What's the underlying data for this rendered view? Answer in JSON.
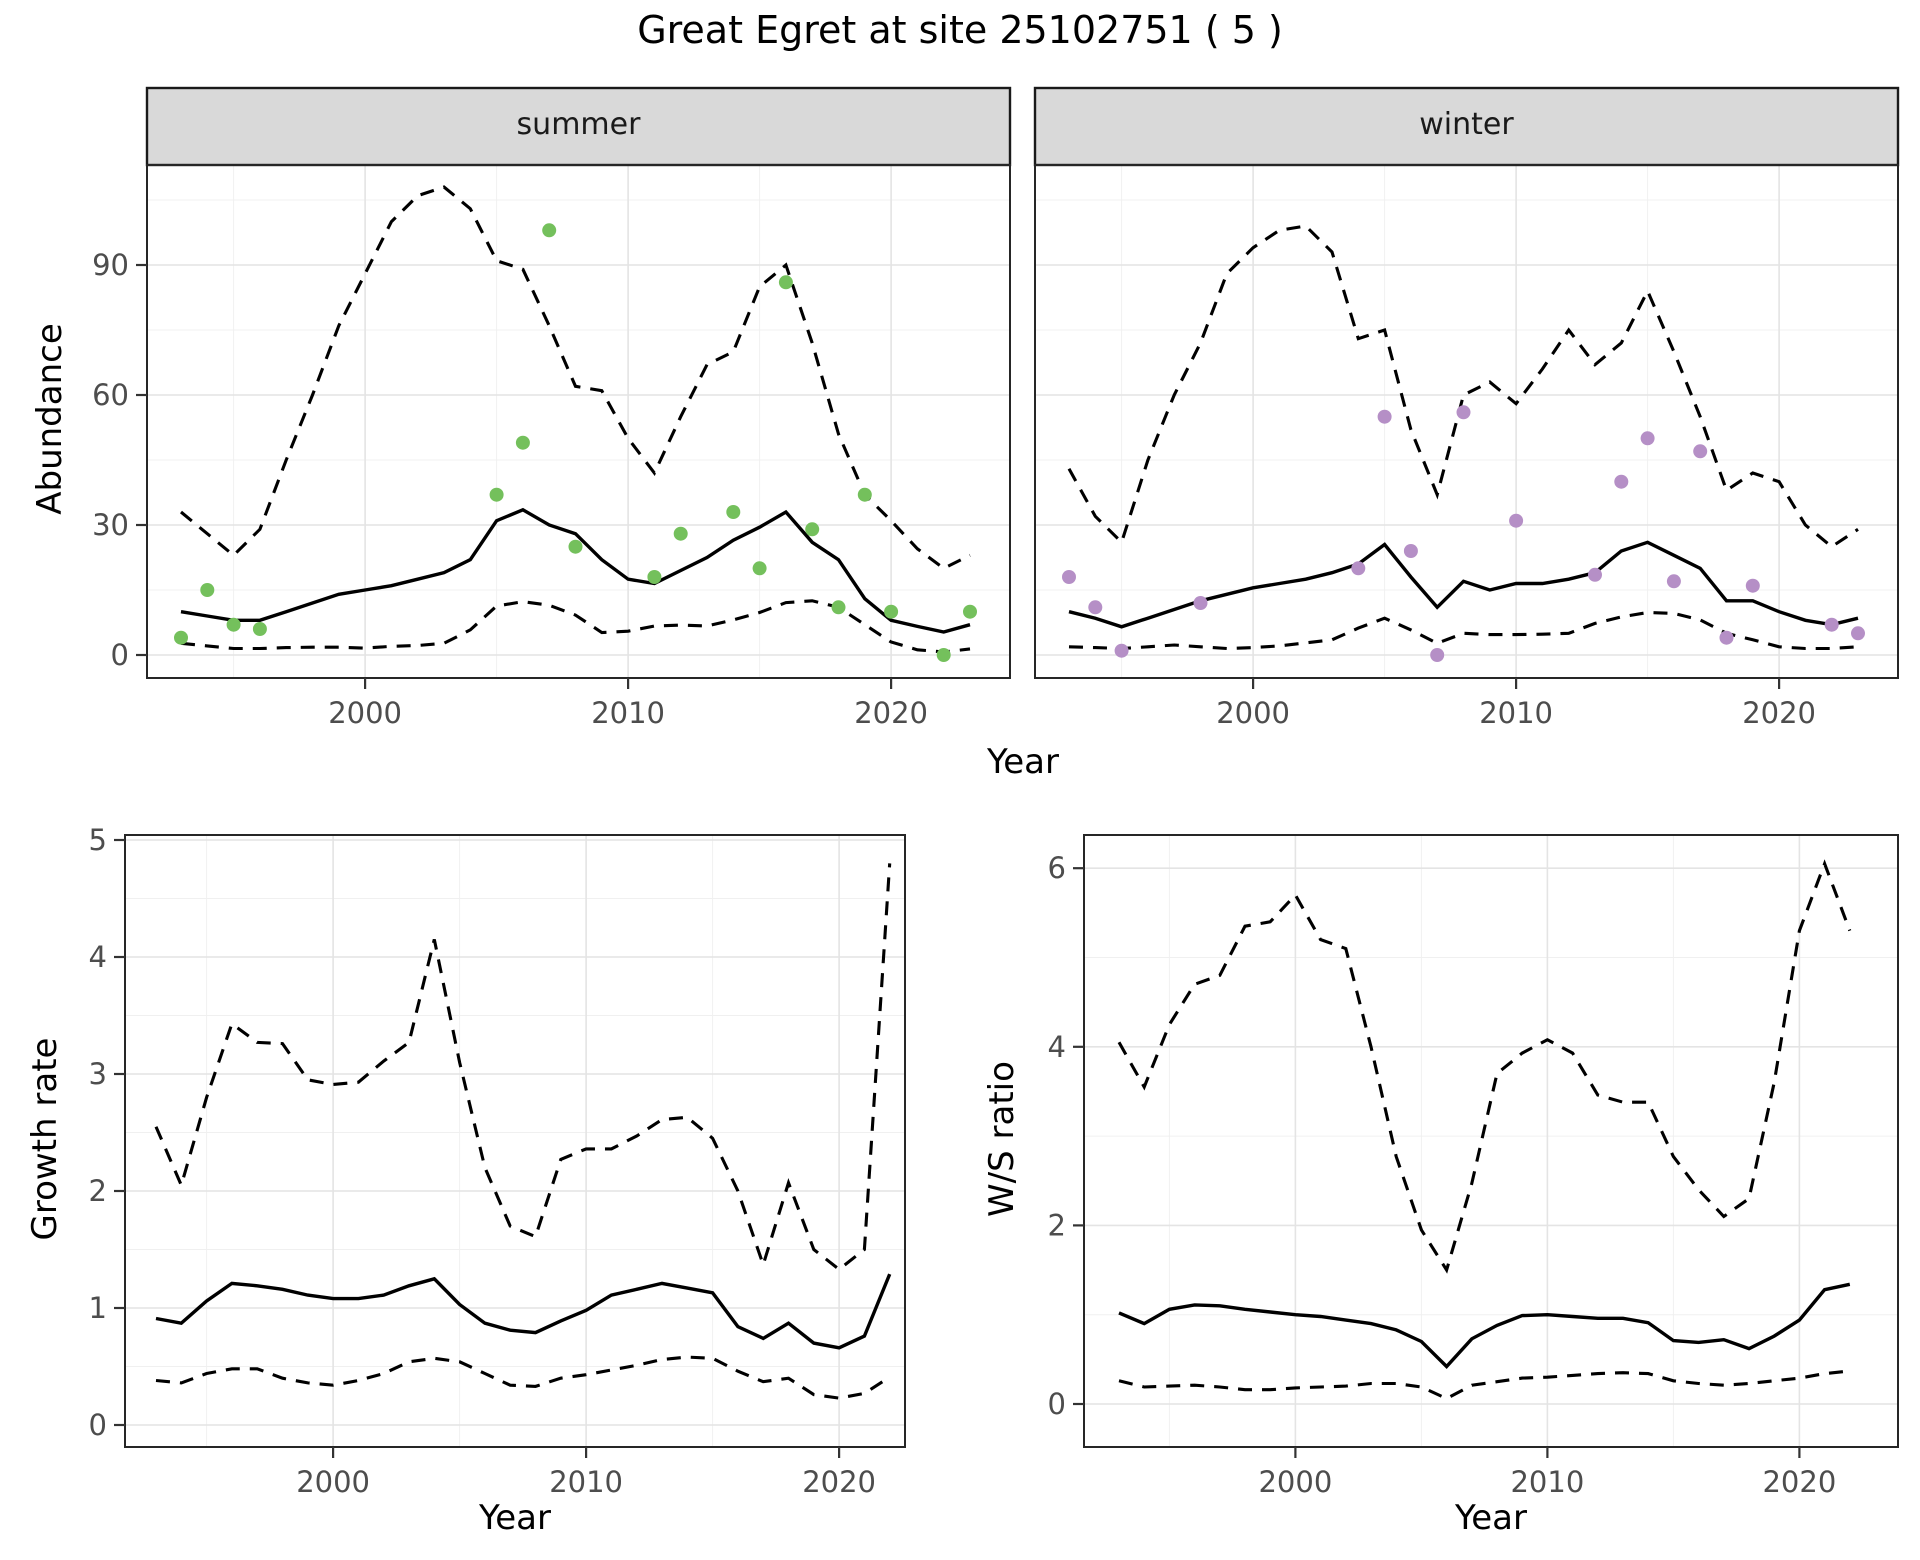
{
  "title": "Great Egret at site 25102751 ( 5 )",
  "labels": {
    "strip_summer": "summer",
    "strip_winter": "winter",
    "abundance_axis": "Abundance",
    "year_axis_top": "Year",
    "growth_axis": "Growth rate",
    "ws_axis": "W/S ratio",
    "year_axis_growth": "Year",
    "year_axis_ws": "Year"
  },
  "colors": {
    "summer_point": "#74c05c",
    "winter_point": "#b58fc6",
    "line": "#000000",
    "strip_bg": "#d9d9d9",
    "strip_border": "#1a1a1a",
    "panel_border": "#262626",
    "grid_major": "#e4e4e4",
    "grid_minor": "#f0f0f0",
    "axis_text": "#4d4d4d",
    "tick_mark": "#333333"
  },
  "chart_data": [
    {
      "id": "abundance_summer",
      "type": "line",
      "facet_label": "summer",
      "ylabel": "Abundance",
      "xlabel": "Year",
      "grid": true,
      "years": [
        1993,
        1994,
        1995,
        1996,
        1997,
        1998,
        1999,
        2000,
        2001,
        2002,
        2003,
        2004,
        2005,
        2006,
        2007,
        2008,
        2009,
        2010,
        2011,
        2012,
        2013,
        2014,
        2015,
        2016,
        2017,
        2018,
        2019,
        2020,
        2021,
        2022,
        2023
      ],
      "ylim": [
        0,
        113
      ],
      "yticks": [
        0,
        30,
        60,
        90
      ],
      "yminor": [
        15,
        45,
        75,
        105
      ],
      "xticks": [
        2000,
        2010,
        2020
      ],
      "xminor": [
        1995,
        2005,
        2015
      ],
      "series": [
        {
          "name": "median",
          "linestyle": "solid",
          "values": [
            10,
            9,
            8,
            8,
            10,
            12,
            14,
            15,
            16,
            17.5,
            19,
            22,
            31,
            33.5,
            30,
            28,
            22,
            17.5,
            16.5,
            19.5,
            22.5,
            26.5,
            29.5,
            33,
            26,
            22,
            13,
            8,
            6.6,
            5.3,
            7
          ]
        },
        {
          "name": "upper_ci",
          "linestyle": "dashed",
          "values": [
            33,
            28,
            23,
            29,
            45,
            60,
            76,
            88,
            100,
            106,
            108,
            103,
            91,
            89,
            76,
            62,
            61,
            50,
            42,
            55,
            67,
            70,
            85,
            90,
            72,
            51,
            37,
            31,
            24.5,
            20,
            23
          ]
        },
        {
          "name": "lower_ci",
          "linestyle": "dashed",
          "values": [
            2.7,
            2.1,
            1.5,
            1.5,
            1.7,
            1.8,
            1.8,
            1.6,
            2,
            2.2,
            2.7,
            5.8,
            11.3,
            12.3,
            11.5,
            9.2,
            5.2,
            5.5,
            6.7,
            6.9,
            6.7,
            8.1,
            9.8,
            12.1,
            12.5,
            11,
            7,
            3,
            1.2,
            0.7,
            1.4
          ]
        }
      ],
      "points": {
        "name": "observed_counts",
        "color": "#74c05c",
        "data": [
          [
            1993,
            4
          ],
          [
            1994,
            15
          ],
          [
            1995,
            7
          ],
          [
            1996,
            6
          ],
          [
            2005,
            37
          ],
          [
            2006,
            49
          ],
          [
            2007,
            98
          ],
          [
            2008,
            25
          ],
          [
            2011,
            18
          ],
          [
            2012,
            28
          ],
          [
            2014,
            33
          ],
          [
            2015,
            20
          ],
          [
            2016,
            86
          ],
          [
            2017,
            29
          ],
          [
            2018,
            11
          ],
          [
            2019,
            37
          ],
          [
            2020,
            10
          ],
          [
            2022,
            0
          ],
          [
            2023,
            10
          ]
        ]
      }
    },
    {
      "id": "abundance_winter",
      "type": "line",
      "facet_label": "winter",
      "ylabel": "Abundance",
      "xlabel": "Year",
      "grid": true,
      "years": [
        1993,
        1994,
        1995,
        1996,
        1997,
        1998,
        1999,
        2000,
        2001,
        2002,
        2003,
        2004,
        2005,
        2006,
        2007,
        2008,
        2009,
        2010,
        2011,
        2012,
        2013,
        2014,
        2015,
        2016,
        2017,
        2018,
        2019,
        2020,
        2021,
        2022,
        2023
      ],
      "ylim": [
        0,
        113
      ],
      "yticks": [
        0,
        30,
        60,
        90
      ],
      "yminor": [
        15,
        45,
        75,
        105
      ],
      "xticks": [
        2000,
        2010,
        2020
      ],
      "xminor": [
        1995,
        2005,
        2015
      ],
      "series": [
        {
          "name": "median",
          "linestyle": "solid",
          "values": [
            10,
            8.5,
            6.5,
            8.5,
            10.5,
            12.5,
            14,
            15.5,
            16.5,
            17.5,
            19,
            21,
            25.5,
            18,
            11,
            17,
            15,
            16.5,
            16.5,
            17.5,
            19,
            24,
            26,
            23,
            20,
            12.5,
            12.5,
            10,
            8,
            7,
            8.5
          ]
        },
        {
          "name": "upper_ci",
          "linestyle": "dashed",
          "values": [
            43,
            32,
            26,
            45,
            60,
            72,
            88,
            94,
            98,
            99,
            93,
            73,
            75,
            52,
            37,
            60,
            63,
            58,
            66,
            75,
            67,
            72,
            84,
            70,
            55,
            38,
            42,
            40,
            30,
            25,
            29
          ]
        },
        {
          "name": "lower_ci",
          "linestyle": "dashed",
          "values": [
            1.9,
            1.7,
            1.5,
            1.9,
            2.3,
            1.9,
            1.5,
            1.7,
            2.1,
            2.8,
            3.5,
            6.2,
            8.5,
            5.8,
            2.7,
            5,
            4.7,
            4.7,
            4.8,
            5,
            7.3,
            8.8,
            9.8,
            9.6,
            8.1,
            5,
            3.5,
            1.9,
            1.5,
            1.5,
            1.9
          ]
        }
      ],
      "points": {
        "name": "observed_counts",
        "color": "#b58fc6",
        "data": [
          [
            1993,
            18
          ],
          [
            1994,
            11
          ],
          [
            1995,
            1
          ],
          [
            1998,
            12
          ],
          [
            2004,
            20
          ],
          [
            2005,
            55
          ],
          [
            2006,
            24
          ],
          [
            2007,
            0
          ],
          [
            2008,
            56
          ],
          [
            2010,
            31
          ],
          [
            2013,
            18.5
          ],
          [
            2014,
            40
          ],
          [
            2015,
            50
          ],
          [
            2016,
            17
          ],
          [
            2017,
            47
          ],
          [
            2018,
            4
          ],
          [
            2019,
            16
          ],
          [
            2022,
            7
          ],
          [
            2023,
            5
          ]
        ]
      }
    },
    {
      "id": "growth_rate",
      "type": "line",
      "ylabel": "Growth rate",
      "xlabel": "Year",
      "grid": true,
      "years": [
        1993,
        1994,
        1995,
        1996,
        1997,
        1998,
        1999,
        2000,
        2001,
        2002,
        2003,
        2004,
        2005,
        2006,
        2007,
        2008,
        2009,
        2010,
        2011,
        2012,
        2013,
        2014,
        2015,
        2016,
        2017,
        2018,
        2019,
        2020,
        2021,
        2022
      ],
      "ylim": [
        0,
        5
      ],
      "yticks": [
        0,
        1,
        2,
        3,
        4,
        5
      ],
      "yminor": [
        0.5,
        1.5,
        2.5,
        3.5,
        4.5
      ],
      "xticks": [
        2000,
        2010,
        2020
      ],
      "xminor": [
        1995,
        2005,
        2015
      ],
      "series": [
        {
          "name": "median",
          "linestyle": "solid",
          "values": [
            0.91,
            0.87,
            1.06,
            1.21,
            1.19,
            1.16,
            1.11,
            1.08,
            1.08,
            1.11,
            1.19,
            1.25,
            1.03,
            0.87,
            0.81,
            0.79,
            0.89,
            0.98,
            1.11,
            1.16,
            1.21,
            1.17,
            1.13,
            0.84,
            0.74,
            0.87,
            0.7,
            0.66,
            0.76,
            1.29
          ]
        },
        {
          "name": "upper_ci",
          "linestyle": "dashed",
          "values": [
            2.55,
            2.05,
            2.8,
            3.43,
            3.27,
            3.26,
            2.95,
            2.91,
            2.93,
            3.11,
            3.27,
            4.15,
            3.1,
            2.2,
            1.7,
            1.61,
            2.27,
            2.36,
            2.36,
            2.47,
            2.61,
            2.63,
            2.45,
            2.0,
            1.37,
            2.07,
            1.5,
            1.33,
            1.5,
            4.8
          ]
        },
        {
          "name": "lower_ci",
          "linestyle": "dashed",
          "values": [
            0.38,
            0.36,
            0.44,
            0.48,
            0.48,
            0.4,
            0.36,
            0.34,
            0.38,
            0.44,
            0.54,
            0.57,
            0.54,
            0.44,
            0.34,
            0.33,
            0.4,
            0.43,
            0.47,
            0.51,
            0.56,
            0.58,
            0.57,
            0.46,
            0.37,
            0.4,
            0.26,
            0.23,
            0.27,
            0.41
          ]
        }
      ],
      "points": null
    },
    {
      "id": "ws_ratio",
      "type": "line",
      "ylabel": "W/S ratio",
      "xlabel": "Year",
      "grid": true,
      "years": [
        1993,
        1994,
        1995,
        1996,
        1997,
        1998,
        1999,
        2000,
        2001,
        2002,
        2003,
        2004,
        2005,
        2006,
        2007,
        2008,
        2009,
        2010,
        2011,
        2012,
        2013,
        2014,
        2015,
        2016,
        2017,
        2018,
        2019,
        2020,
        2021,
        2022
      ],
      "ylim": [
        0,
        6.4
      ],
      "yticks": [
        0,
        2,
        4,
        6
      ],
      "yminor": [
        1,
        3,
        5
      ],
      "xticks": [
        2000,
        2010,
        2020
      ],
      "xminor": [
        1995,
        2005,
        2015
      ],
      "series": [
        {
          "name": "median",
          "linestyle": "solid",
          "values": [
            1.02,
            0.9,
            1.06,
            1.11,
            1.1,
            1.06,
            1.03,
            1.0,
            0.98,
            0.94,
            0.9,
            0.83,
            0.7,
            0.42,
            0.73,
            0.88,
            0.99,
            1.0,
            0.98,
            0.96,
            0.96,
            0.91,
            0.71,
            0.69,
            0.72,
            0.62,
            0.76,
            0.94,
            1.28,
            1.34
          ]
        },
        {
          "name": "upper_ci",
          "linestyle": "dashed",
          "values": [
            4.05,
            3.55,
            4.25,
            4.7,
            4.8,
            5.35,
            5.4,
            5.7,
            5.2,
            5.1,
            4.0,
            2.77,
            1.95,
            1.5,
            2.47,
            3.7,
            3.93,
            4.08,
            3.93,
            3.46,
            3.38,
            3.38,
            2.77,
            2.4,
            2.1,
            2.3,
            3.6,
            5.3,
            6.05,
            5.3
          ]
        },
        {
          "name": "lower_ci",
          "linestyle": "dashed",
          "values": [
            0.26,
            0.19,
            0.2,
            0.21,
            0.19,
            0.16,
            0.16,
            0.18,
            0.19,
            0.2,
            0.23,
            0.23,
            0.19,
            0.06,
            0.21,
            0.25,
            0.29,
            0.3,
            0.32,
            0.34,
            0.35,
            0.34,
            0.26,
            0.23,
            0.21,
            0.23,
            0.26,
            0.29,
            0.34,
            0.37
          ]
        }
      ],
      "points": null
    }
  ]
}
